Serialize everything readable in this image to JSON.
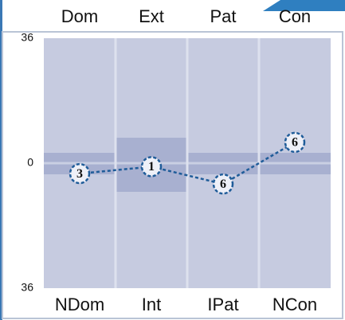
{
  "chart_data": {
    "type": "line",
    "top_categories": [
      "Dom",
      "Ext",
      "Pat",
      "Con"
    ],
    "bottom_categories": [
      "NDom",
      "Int",
      "IPat",
      "NCon"
    ],
    "values": [
      -3,
      -1,
      -6,
      6
    ],
    "value_labels": [
      "3",
      "1",
      "6",
      "6"
    ],
    "color": "#1f5c99",
    "ylim": [
      -36,
      36
    ],
    "yticks": [
      {
        "value": 36,
        "label": "36"
      },
      0,
      {
        "value": -36,
        "label": "36"
      }
    ]
  }
}
